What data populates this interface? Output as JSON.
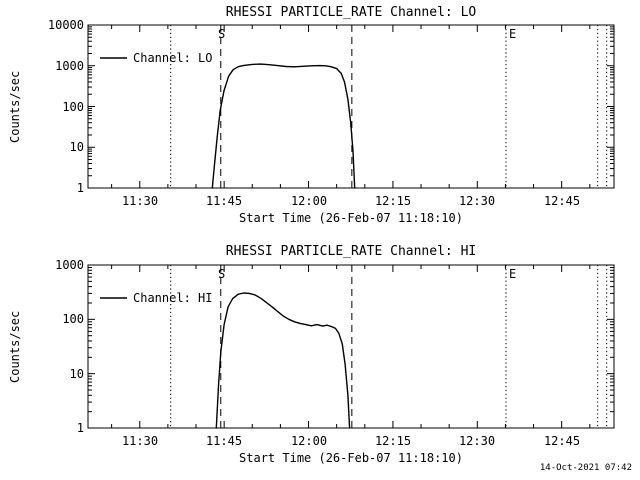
{
  "page": {
    "background": "#ffffff",
    "foreground": "#000000",
    "timestamp": "14-Oct-2021 07:42"
  },
  "chart_data": [
    {
      "type": "line",
      "title": "RHESSI PARTICLE_RATE Channel: LO",
      "xlabel": "Start Time (26-Feb-07 11:18:10)",
      "ylabel": "Counts/sec",
      "legend": "Channel: LO",
      "yscale": "log",
      "ylim": [
        1,
        10000
      ],
      "grid": false,
      "y_tick_labels": [
        "10000",
        "1000",
        "100",
        "10",
        "1"
      ],
      "x_tick_labels": [
        "11:30",
        "11:45",
        "12:00",
        "12:15",
        "12:30",
        "12:45"
      ],
      "x_tick_minutes": [
        30,
        45,
        60,
        75,
        90,
        105
      ],
      "x_minor_step_minutes": 5,
      "x_range_minutes": [
        20.8,
        114.3
      ],
      "markers": [
        {
          "minute": 35.5,
          "style": "dotted",
          "label": ""
        },
        {
          "minute": 44.4,
          "style": "dashed",
          "label": "S"
        },
        {
          "minute": 67.7,
          "style": "dashed",
          "label": ""
        },
        {
          "minute": 95.1,
          "style": "dotted",
          "label": "E"
        },
        {
          "minute": 111.4,
          "style": "dotted",
          "label": ""
        },
        {
          "minute": 113.0,
          "style": "dotted",
          "label": ""
        }
      ],
      "series": [
        {
          "name": "Channel: LO",
          "x_minutes": [
            42.9,
            43.3,
            43.8,
            44.3,
            45.0,
            45.8,
            46.6,
            47.5,
            48.5,
            50.0,
            51.5,
            53.0,
            54.5,
            56.0,
            57.5,
            59.0,
            60.5,
            62.0,
            63.0,
            64.0,
            65.0,
            65.8,
            66.4,
            67.0,
            67.5,
            67.9,
            68.2
          ],
          "counts": [
            1,
            4,
            20,
            80,
            250,
            550,
            800,
            950,
            1020,
            1080,
            1100,
            1060,
            1010,
            960,
            940,
            970,
            1000,
            1010,
            1000,
            950,
            850,
            650,
            400,
            150,
            40,
            8,
            1
          ]
        }
      ]
    },
    {
      "type": "line",
      "title": "RHESSI PARTICLE_RATE Channel: HI",
      "xlabel": "Start Time (26-Feb-07 11:18:10)",
      "ylabel": "Counts/sec",
      "legend": "Channel: HI",
      "yscale": "log",
      "ylim": [
        1,
        1000
      ],
      "grid": false,
      "y_tick_labels": [
        "1000",
        "100",
        "10",
        "1"
      ],
      "x_tick_labels": [
        "11:30",
        "11:45",
        "12:00",
        "12:15",
        "12:30",
        "12:45"
      ],
      "x_tick_minutes": [
        30,
        45,
        60,
        75,
        90,
        105
      ],
      "x_minor_step_minutes": 5,
      "x_range_minutes": [
        20.8,
        114.3
      ],
      "markers": [
        {
          "minute": 35.5,
          "style": "dotted",
          "label": ""
        },
        {
          "minute": 44.4,
          "style": "dashed",
          "label": "S"
        },
        {
          "minute": 67.7,
          "style": "dashed",
          "label": ""
        },
        {
          "minute": 95.1,
          "style": "dotted",
          "label": "E"
        },
        {
          "minute": 111.4,
          "style": "dotted",
          "label": ""
        },
        {
          "minute": 113.0,
          "style": "dotted",
          "label": ""
        }
      ],
      "series": [
        {
          "name": "Channel: HI",
          "x_minutes": [
            43.6,
            44.0,
            44.4,
            45.0,
            45.7,
            46.5,
            47.5,
            48.5,
            49.5,
            50.5,
            51.5,
            52.5,
            53.5,
            54.5,
            55.5,
            56.5,
            57.5,
            58.5,
            59.5,
            60.5,
            61.5,
            62.5,
            63.3,
            64.0,
            64.8,
            65.4,
            66.0,
            66.5,
            67.0,
            67.3
          ],
          "counts": [
            1,
            6,
            25,
            80,
            170,
            240,
            290,
            305,
            300,
            280,
            245,
            205,
            170,
            140,
            115,
            100,
            90,
            84,
            80,
            76,
            80,
            75,
            78,
            74,
            68,
            55,
            35,
            15,
            4,
            1
          ]
        }
      ]
    }
  ]
}
